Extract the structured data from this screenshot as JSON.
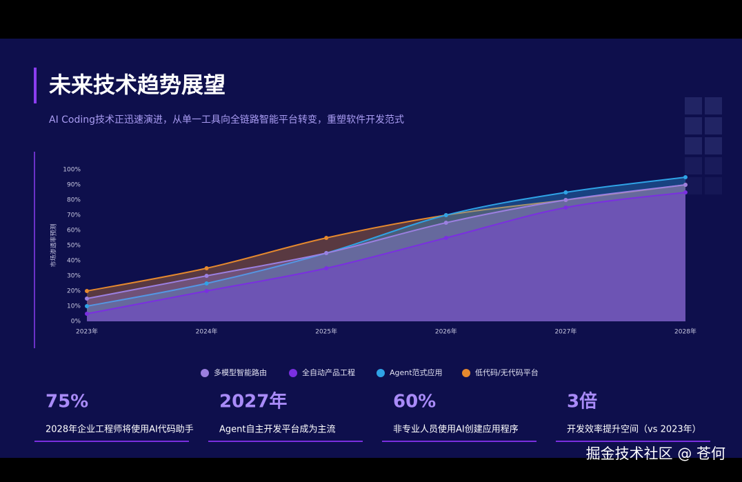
{
  "header": {
    "title": "未来技术趋势展望",
    "subtitle": "AI Coding技术正迅速演进，从单一工具向全链路智能平台转变，重塑软件开发范式"
  },
  "chart_data": {
    "type": "area",
    "y_label": "市场渗透率预测",
    "categories": [
      "2023年",
      "2024年",
      "2025年",
      "2026年",
      "2027年",
      "2028年"
    ],
    "series": [
      {
        "name": "多模型智能路由",
        "color": "#9b7fe0",
        "values": [
          15,
          30,
          45,
          65,
          80,
          90
        ]
      },
      {
        "name": "全自动产品工程",
        "color": "#7a2fe0",
        "values": [
          5,
          20,
          35,
          55,
          75,
          85
        ]
      },
      {
        "name": "Agent范式应用",
        "color": "#2fa3e6",
        "values": [
          10,
          25,
          45,
          70,
          85,
          95
        ]
      },
      {
        "name": "低代码/无代码平台",
        "color": "#e5892e",
        "values": [
          20,
          35,
          55,
          70,
          80,
          90
        ]
      }
    ],
    "ylim": [
      0,
      100
    ],
    "yticks": [
      {
        "value": 0,
        "label": "0%"
      },
      {
        "value": 10,
        "label": "10%"
      },
      {
        "value": 20,
        "label": "20%"
      },
      {
        "value": 30,
        "label": "30%"
      },
      {
        "value": 40,
        "label": "40%"
      },
      {
        "value": 50,
        "label": "50%"
      },
      {
        "value": 60,
        "label": "60%"
      },
      {
        "value": 70,
        "label": "70%"
      },
      {
        "value": 80,
        "label": "80%"
      },
      {
        "value": 90,
        "label": "90%"
      },
      {
        "value": 100,
        "label": "100%"
      }
    ],
    "legend": "bottom"
  },
  "stats": [
    {
      "value": "75%",
      "text": "2028年企业工程师将使用AI代码助手"
    },
    {
      "value": "2027年",
      "text": "Agent自主开发平台成为主流"
    },
    {
      "value": "60%",
      "text": "非专业人员使用AI创建应用程序"
    },
    {
      "value": "3倍",
      "text": "开发效率提升空间（vs 2023年）"
    }
  ],
  "watermark": "掘金技术社区 @ 苍何"
}
